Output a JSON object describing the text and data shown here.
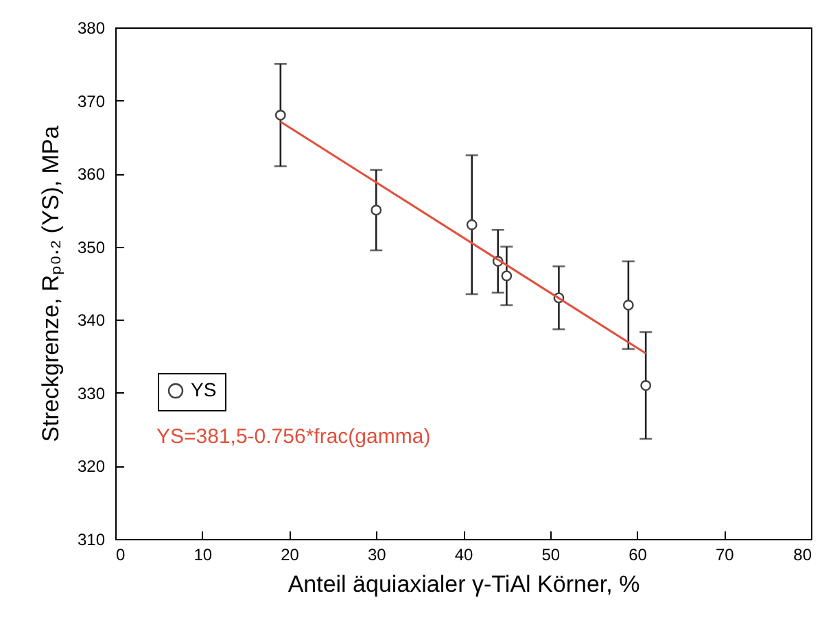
{
  "chart_data": {
    "type": "scatter",
    "xlabel": "Anteil äquiaxialer γ-TiAl Körner, %",
    "ylabel": "Streckgrenze, Rₚ₀.₂ (YS), MPa",
    "xlim": [
      0,
      80
    ],
    "xticks": [
      0,
      10,
      20,
      30,
      40,
      50,
      60,
      70,
      80
    ],
    "ylim": [
      310,
      380
    ],
    "yticks": [
      310,
      320,
      330,
      340,
      350,
      360,
      370,
      380
    ],
    "grid": false,
    "legend": "left",
    "marker": "circle",
    "series": [
      {
        "name": "YS",
        "color": "#404040",
        "x": [
          19,
          30,
          41,
          44,
          45,
          51,
          59,
          61
        ],
        "values": [
          368,
          355,
          353,
          348,
          346,
          343,
          342,
          331
        ],
        "errors": [
          7,
          5.5,
          9.5,
          4.3,
          4,
          4.3,
          6,
          7.3
        ]
      },
      {
        "type": "line",
        "marker": "none",
        "color": "#e0503c",
        "x": [
          19,
          61
        ],
        "values": [
          367.1,
          335.4
        ]
      }
    ],
    "annotations": [
      "YS=381,5-0.756*frac(gamma)"
    ]
  }
}
